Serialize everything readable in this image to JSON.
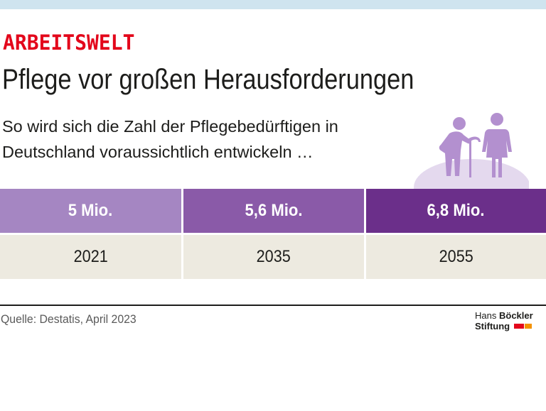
{
  "kicker": "ARBEITSWELT",
  "title": "Pflege vor großen Herausforderungen",
  "subtitle_lines": [
    "So wird sich die Zahl der Pflegebedürftigen in",
    "Deutschland voraussichtlich entwickeln …"
  ],
  "icons": {
    "illustration": "elderly-couple-icon"
  },
  "colors": {
    "kicker": "#e3061b",
    "cell_1": "#a586c2",
    "cell_2": "#8a5aa8",
    "cell_3": "#6b2f8a",
    "year_bg": "#edeae0",
    "figure": "#b390cf",
    "hill": "#e4d9ee"
  },
  "chart_data": {
    "type": "table",
    "title": "Pflege vor großen Herausforderungen",
    "categories": [
      "2021",
      "2035",
      "2055"
    ],
    "values": [
      5,
      5.6,
      6.8
    ],
    "value_labels": [
      "5 Mio.",
      "5,6 Mio.",
      "6,8 Mio."
    ],
    "unit": "Mio."
  },
  "footer": {
    "source": "Quelle: Destatis, April 2023",
    "logo_text_1": "Hans",
    "logo_text_1_bold": "Böckler",
    "logo_text_2": "Stiftung"
  }
}
